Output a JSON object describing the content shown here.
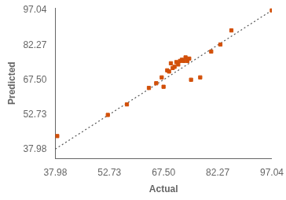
{
  "chart_data": {
    "type": "scatter",
    "x_label": "Actual",
    "y_label": "Predicted",
    "xlim": [
      37.98,
      97.04
    ],
    "ylim": [
      33.98,
      98.04
    ],
    "xticks": [
      37.98,
      52.73,
      {
        "value": 67.5,
        "label": "67.50"
      },
      82.27,
      97.04
    ],
    "yticks": [
      37.98,
      52.73,
      {
        "value": 67.5,
        "label": "67.50"
      },
      82.27,
      97.04
    ],
    "grid": false,
    "series": [
      {
        "type": "line",
        "line_style": "dotted",
        "color": "#555555",
        "x": [
          37.98,
          97.04
        ],
        "values": [
          37.98,
          97.04
        ]
      },
      {
        "type": "scatter",
        "marker": "square",
        "color": "#D2500A",
        "x": [
          38.5,
          52.3,
          57.5,
          63.5,
          65.5,
          67.0,
          67.5,
          68.5,
          69.0,
          69.5,
          70.0,
          70.5,
          71.0,
          71.5,
          72.0,
          72.5,
          73.0,
          73.5,
          74.0,
          74.5,
          75.0,
          77.5,
          80.5,
          83.0,
          86.0,
          97.04
        ],
        "values": [
          43.5,
          52.5,
          57.0,
          64.0,
          66.0,
          68.5,
          64.5,
          71.5,
          71.0,
          74.5,
          72.5,
          73.0,
          75.0,
          74.0,
          75.5,
          76.0,
          75.5,
          77.0,
          75.5,
          76.5,
          67.5,
          68.5,
          79.5,
          82.5,
          88.5,
          97.04
        ]
      }
    ]
  }
}
